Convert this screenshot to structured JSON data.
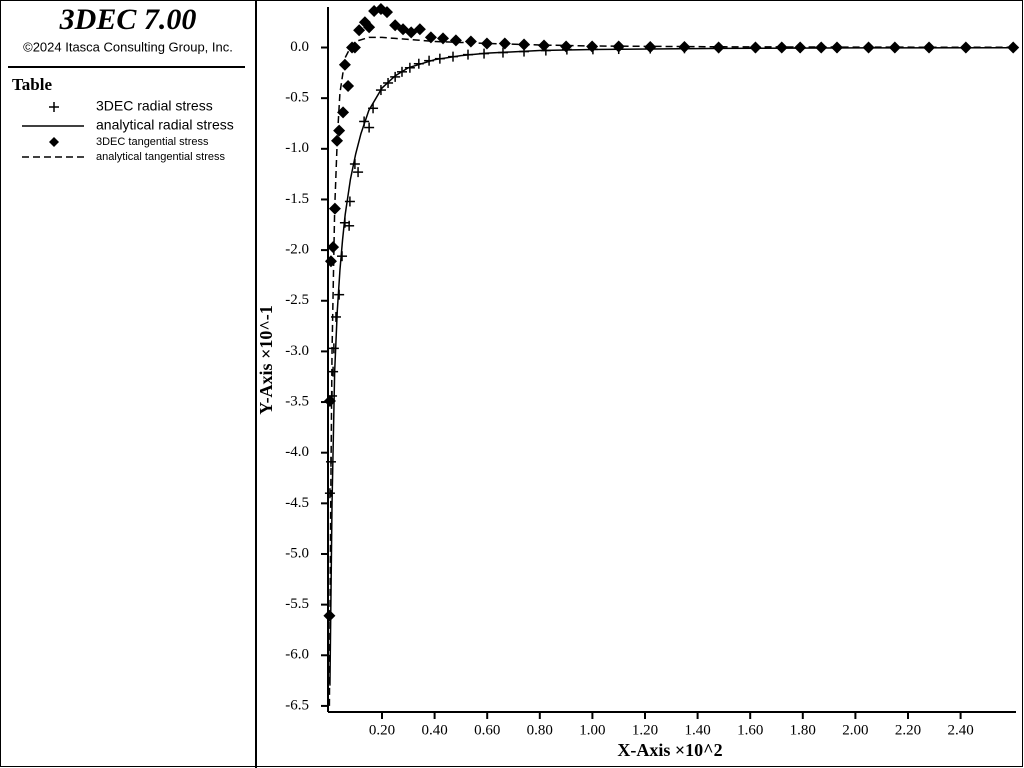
{
  "chart_data": {
    "type": "line",
    "title": "3DEC 7.00",
    "subtitle": "©2024 Itasca Consulting Group, Inc.",
    "legend_title": "Table",
    "x_label": "X-Axis ×10^2",
    "y_label": "Y-Axis ×10^-1",
    "xlim": [
      0,
      2.6
    ],
    "ylim": [
      -6.56,
      0.4
    ],
    "xticks": [
      {
        "value": 0.2,
        "label": "0.20"
      },
      {
        "value": 0.4,
        "label": "0.40"
      },
      {
        "value": 0.6,
        "label": "0.60"
      },
      {
        "value": 0.8,
        "label": "0.80"
      },
      {
        "value": 1.0,
        "label": "1.00"
      },
      {
        "value": 1.2,
        "label": "1.20"
      },
      {
        "value": 1.4,
        "label": "1.40"
      },
      {
        "value": 1.6,
        "label": "1.60"
      },
      {
        "value": 1.8,
        "label": "1.80"
      },
      {
        "value": 2.0,
        "label": "2.00"
      },
      {
        "value": 2.2,
        "label": "2.20"
      },
      {
        "value": 2.4,
        "label": "2.40"
      }
    ],
    "yticks": [
      {
        "value": 0,
        "label": "0.0"
      },
      -0.5,
      {
        "value": -1,
        "label": "-1.0"
      },
      -1.5,
      {
        "value": -2,
        "label": "-2.0"
      },
      -2.5,
      {
        "value": -3,
        "label": "-3.0"
      },
      -3.5,
      {
        "value": -4,
        "label": "-4.0"
      },
      -4.5,
      {
        "value": -5,
        "label": "-5.0"
      },
      -5.5,
      {
        "value": -6,
        "label": "-6.0"
      },
      -6.5
    ],
    "series": [
      {
        "name": "3DEC radial stress",
        "style": "plus",
        "color": "#000000",
        "x": [
          0.002,
          0.006,
          0.01,
          0.014,
          0.017,
          0.025,
          0.037,
          0.048,
          0.059,
          0.075,
          0.078,
          0.097,
          0.109,
          0.132,
          0.151,
          0.166,
          0.196,
          0.223,
          0.25,
          0.276,
          0.306,
          0.34,
          0.379,
          0.42,
          0.47,
          0.527,
          0.588,
          0.66,
          0.74,
          0.823,
          0.903,
          1.002,
          1.1,
          1.22,
          1.35,
          1.48,
          1.62,
          1.79,
          1.93,
          2.15,
          2.42,
          2.6
        ],
        "values": [
          -4.4,
          -4.09,
          -3.44,
          -3.2,
          -2.97,
          -2.66,
          -2.44,
          -2.06,
          -1.73,
          -1.76,
          -1.52,
          -1.15,
          -1.23,
          -0.73,
          -0.79,
          -0.6,
          -0.42,
          -0.35,
          -0.29,
          -0.24,
          -0.2,
          -0.16,
          -0.13,
          -0.11,
          -0.09,
          -0.07,
          -0.06,
          -0.05,
          -0.04,
          -0.03,
          -0.02,
          -0.018,
          -0.015,
          -0.01,
          -0.008,
          -0.006,
          -0.005,
          -0.004,
          -0.003,
          -0.002,
          -0.002,
          -0.001
        ]
      },
      {
        "name": "analytical radial stress",
        "style": "solid",
        "color": "#000000",
        "x": [
          0.002,
          0.01,
          0.02,
          0.03,
          0.04,
          0.05,
          0.06,
          0.08,
          0.1,
          0.12,
          0.15,
          0.2,
          0.25,
          0.3,
          0.4,
          0.5,
          0.6,
          0.8,
          1.0,
          1.5,
          2.0,
          2.6
        ],
        "values": [
          -6.3,
          -4.5,
          -3.2,
          -2.6,
          -2.2,
          -1.9,
          -1.65,
          -1.3,
          -1.05,
          -0.85,
          -0.62,
          -0.4,
          -0.28,
          -0.2,
          -0.12,
          -0.08,
          -0.055,
          -0.03,
          -0.02,
          -0.008,
          -0.004,
          -0.002
        ]
      },
      {
        "name": "3DEC tangential stress",
        "style": "diamond",
        "color": "#000000",
        "x": [
          0.0,
          0.002,
          0.006,
          0.014,
          0.021,
          0.029,
          0.037,
          0.052,
          0.059,
          0.071,
          0.086,
          0.097,
          0.113,
          0.135,
          0.151,
          0.17,
          0.196,
          0.219,
          0.25,
          0.28,
          0.311,
          0.344,
          0.386,
          0.432,
          0.481,
          0.538,
          0.599,
          0.667,
          0.74,
          0.816,
          0.9,
          0.999,
          1.1,
          1.22,
          1.35,
          1.48,
          1.62,
          1.72,
          1.79,
          1.87,
          1.93,
          2.05,
          2.15,
          2.28,
          2.42,
          2.6
        ],
        "values": [
          -5.61,
          -3.49,
          -2.11,
          -1.97,
          -1.59,
          -0.92,
          -0.82,
          -0.64,
          -0.17,
          -0.38,
          0,
          0,
          0.17,
          0.25,
          0.2,
          0.36,
          0.38,
          0.35,
          0.22,
          0.18,
          0.15,
          0.18,
          0.1,
          0.09,
          0.07,
          0.06,
          0.04,
          0.04,
          0.03,
          0.02,
          0.01,
          0.01,
          0.01,
          0.005,
          0.005,
          0,
          0,
          0,
          0,
          0,
          0,
          0,
          0,
          0,
          0,
          0
        ]
      },
      {
        "name": "analytical tangential stress",
        "style": "dashed",
        "color": "#000000",
        "x": [
          0.0,
          0.005,
          0.01,
          0.02,
          0.03,
          0.04,
          0.06,
          0.08,
          0.1,
          0.15,
          0.2,
          0.25,
          0.3,
          0.4,
          0.5,
          0.6,
          0.8,
          1.0,
          1.5,
          2.0,
          2.6
        ],
        "values": [
          -6.5,
          -4.5,
          -3.0,
          -1.6,
          -0.9,
          -0.45,
          -0.1,
          0.0,
          0.06,
          0.1,
          0.1,
          0.09,
          0.08,
          0.06,
          0.05,
          0.04,
          0.025,
          0.015,
          0.007,
          0.004,
          0.002
        ]
      }
    ]
  }
}
